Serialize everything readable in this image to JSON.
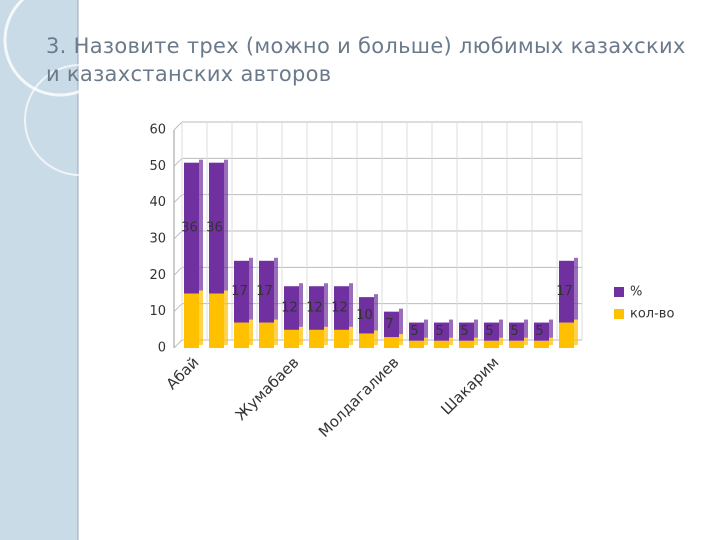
{
  "chart_data": {
    "type": "bar",
    "stacked": true,
    "title": "3. Назовите трех (можно и больше) любимых казахских и казахстанских авторов",
    "categories": [
      "Абай",
      null,
      null,
      null,
      "Жумабаев",
      null,
      null,
      null,
      "Молдагалиев",
      null,
      null,
      null,
      "Шакарим",
      null,
      null,
      null
    ],
    "series": [
      {
        "name": "кол-во",
        "color": "#ffc000",
        "values": [
          15,
          15,
          7,
          7,
          5,
          5,
          5,
          4,
          3,
          2,
          2,
          2,
          2,
          2,
          2,
          7
        ]
      },
      {
        "name": "%",
        "color": "#7030a0",
        "values": [
          36,
          36,
          17,
          17,
          12,
          12,
          12,
          10,
          7,
          5,
          5,
          5,
          5,
          5,
          5,
          17
        ],
        "labels": true
      }
    ],
    "ylim": [
      0,
      60
    ],
    "yticks": [
      0,
      10,
      20,
      30,
      40,
      50,
      60
    ],
    "grid": true,
    "legend": "right"
  }
}
